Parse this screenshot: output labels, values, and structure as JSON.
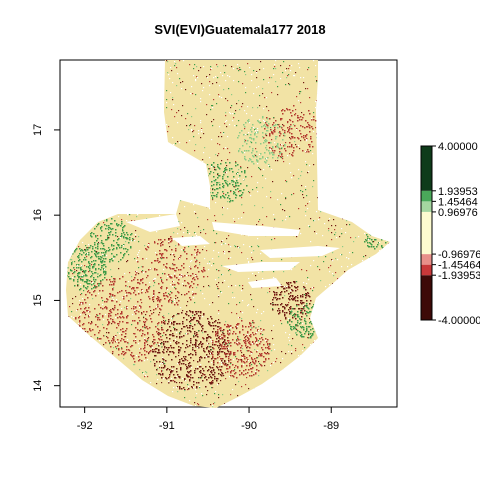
{
  "title": "SVI(EVI)Guatemala177 2018",
  "axes": {
    "x_ticks": [
      -92,
      -91,
      -90,
      -89
    ],
    "x_tick_labels": [
      "-92",
      "-91",
      "-90",
      "-89"
    ],
    "y_ticks": [
      14,
      15,
      16,
      17
    ],
    "y_tick_labels": [
      "14",
      "15",
      "16",
      "17"
    ],
    "xlim": [
      -92.3,
      -88.2
    ],
    "ylim": [
      13.75,
      17.82
    ]
  },
  "legend": {
    "range": [
      -4.0,
      4.0
    ],
    "breaks": [
      -4.0,
      -1.93953,
      -1.45464,
      -0.96976,
      0.96976,
      1.45464,
      1.93953,
      4.0
    ],
    "labels": [
      "-4.00000",
      "-1.93953",
      "-1.45464",
      "-0.96976",
      "0.96976",
      "1.45464",
      "1.93953",
      "4.00000"
    ],
    "colors": [
      "#3d0a08",
      "#c8393a",
      "#e8908a",
      "#fdfbd0",
      "#a5d6a0",
      "#4aa95a",
      "#0e3b1a"
    ]
  },
  "map_colors": {
    "land_base": "#f2e3a5",
    "dry_dark": "#6e1a12",
    "dry": "#b33a30",
    "wet": "#3c9a46",
    "wet_light": "#8ccb86"
  }
}
